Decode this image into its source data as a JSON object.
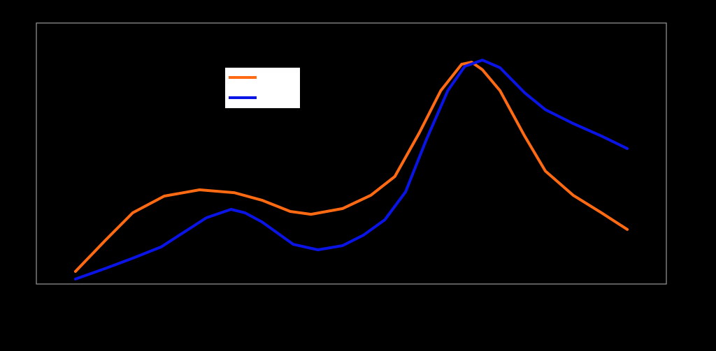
{
  "chart_data": {
    "type": "line",
    "xlim": [
      0,
      100
    ],
    "ylim": [
      0,
      100
    ],
    "series": [
      {
        "color": "#ff6a13",
        "x": [
          6.2,
          10.9,
          15.3,
          20.3,
          25.9,
          31.4,
          35.8,
          40.3,
          43.6,
          48.6,
          53.1,
          56.9,
          60.8,
          64.2,
          67.5,
          69.1,
          70.8,
          73.6,
          77.5,
          80.8,
          85.2,
          89.7,
          93.8
        ],
        "values": [
          4.8,
          16.6,
          27.3,
          33.7,
          36.1,
          35.0,
          32.1,
          27.8,
          26.7,
          28.9,
          34.0,
          41.2,
          58.0,
          74.1,
          84.2,
          85.0,
          82.1,
          74.1,
          56.7,
          43.3,
          34.0,
          27.3,
          20.9
        ]
      },
      {
        "color": "#0a14e6",
        "x": [
          6.2,
          10.9,
          15.3,
          19.8,
          23.6,
          27.0,
          30.9,
          33.1,
          35.8,
          40.8,
          44.7,
          48.6,
          51.9,
          55.3,
          58.6,
          61.9,
          65.3,
          68.0,
          70.8,
          73.6,
          77.5,
          80.8,
          85.2,
          89.7,
          93.8
        ],
        "values": [
          1.9,
          5.9,
          9.9,
          14.2,
          20.1,
          25.4,
          28.6,
          27.3,
          23.8,
          15.2,
          13.1,
          14.7,
          18.7,
          24.6,
          35.3,
          55.3,
          74.1,
          83.4,
          85.8,
          82.9,
          73.3,
          66.8,
          61.5,
          56.7,
          51.9
        ]
      }
    ]
  }
}
